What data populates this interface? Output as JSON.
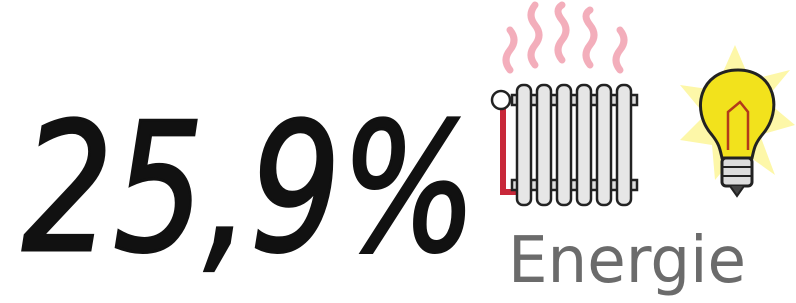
{
  "figure": {
    "value": "25,9%",
    "label": "Energie"
  }
}
